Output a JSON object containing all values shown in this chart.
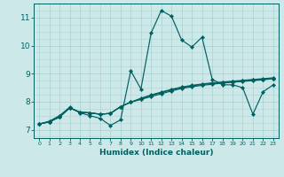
{
  "xlabel": "Humidex (Indice chaleur)",
  "xlim": [
    -0.5,
    23.5
  ],
  "ylim": [
    6.7,
    11.5
  ],
  "yticks": [
    7,
    8,
    9,
    10,
    11
  ],
  "xticks": [
    0,
    1,
    2,
    3,
    4,
    5,
    6,
    7,
    8,
    9,
    10,
    11,
    12,
    13,
    14,
    15,
    16,
    17,
    18,
    19,
    20,
    21,
    22,
    23
  ],
  "bg_color": "#cce8e8",
  "grid_color": "#aed4d4",
  "line_color": "#006060",
  "series": [
    [
      7.2,
      7.3,
      7.5,
      7.8,
      7.6,
      7.5,
      7.4,
      7.15,
      7.35,
      9.1,
      8.45,
      10.45,
      11.25,
      11.05,
      10.2,
      9.95,
      10.3,
      8.8,
      8.6,
      8.6,
      8.5,
      7.55,
      8.35,
      8.6
    ],
    [
      7.2,
      7.28,
      7.45,
      7.78,
      7.62,
      7.6,
      7.55,
      7.58,
      7.82,
      7.98,
      8.08,
      8.18,
      8.28,
      8.38,
      8.47,
      8.53,
      8.58,
      8.62,
      8.66,
      8.69,
      8.72,
      8.75,
      8.78,
      8.82
    ],
    [
      7.2,
      7.28,
      7.45,
      7.78,
      7.62,
      7.6,
      7.55,
      7.58,
      7.82,
      7.98,
      8.1,
      8.22,
      8.32,
      8.42,
      8.5,
      8.56,
      8.61,
      8.65,
      8.68,
      8.71,
      8.74,
      8.77,
      8.8,
      8.83
    ],
    [
      7.2,
      7.28,
      7.45,
      7.78,
      7.62,
      7.6,
      7.55,
      7.58,
      7.82,
      7.98,
      8.12,
      8.24,
      8.34,
      8.44,
      8.52,
      8.58,
      8.63,
      8.67,
      8.7,
      8.73,
      8.76,
      8.79,
      8.82,
      8.85
    ]
  ]
}
